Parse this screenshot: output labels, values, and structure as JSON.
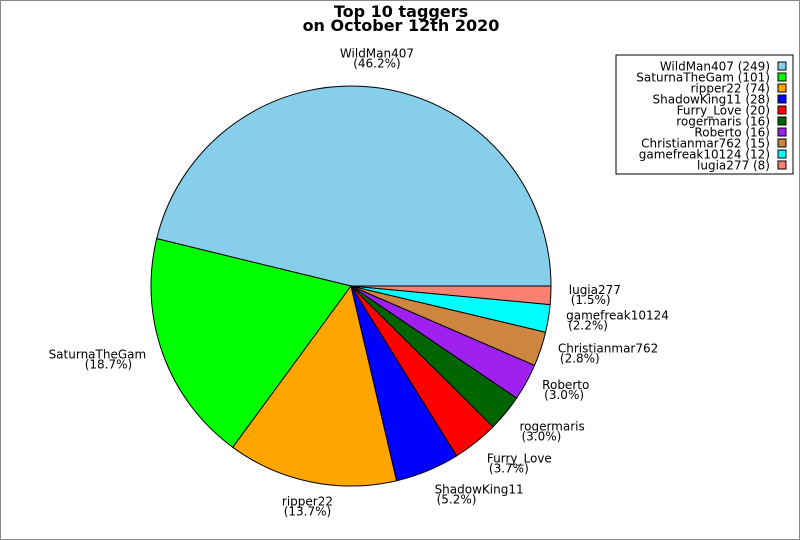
{
  "chart_data": {
    "type": "pie",
    "title": [
      "Top 10 taggers",
      "on October 12th 2020"
    ],
    "start_angle_deg": 0,
    "direction": "counterclockwise",
    "legend_placement": "top-right",
    "slices": [
      {
        "label": "WildMan407",
        "value": 249,
        "percent": "46.2%",
        "color": "#87ceeb"
      },
      {
        "label": "SaturnaTheGam",
        "value": 101,
        "percent": "18.7%",
        "color": "#00ff00"
      },
      {
        "label": "ripper22",
        "value": 74,
        "percent": "13.7%",
        "color": "#ffa500"
      },
      {
        "label": "ShadowKing11",
        "value": 28,
        "percent": "5.2%",
        "color": "#0000ff"
      },
      {
        "label": "Furry_Love",
        "value": 20,
        "percent": "3.7%",
        "color": "#ff0000"
      },
      {
        "label": "rogermaris",
        "value": 16,
        "percent": "3.0%",
        "color": "#006400"
      },
      {
        "label": "Roberto",
        "value": 16,
        "percent": "3.0%",
        "color": "#a020f0"
      },
      {
        "label": "Christianmar762",
        "value": 15,
        "percent": "2.8%",
        "color": "#cd853f"
      },
      {
        "label": "gamefreak10124",
        "value": 12,
        "percent": "2.2%",
        "color": "#00ffff"
      },
      {
        "label": "lugia277",
        "value": 8,
        "percent": "1.5%",
        "color": "#fa8072"
      }
    ]
  }
}
